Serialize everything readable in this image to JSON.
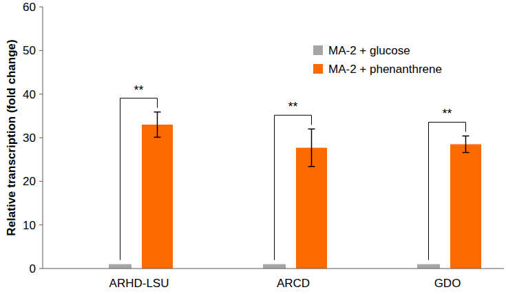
{
  "chart_data": {
    "type": "bar",
    "y_label": "Relative transcription (fold change)",
    "categories": [
      "ARHD-LSU",
      "ARCD",
      "GDO"
    ],
    "series": [
      {
        "name": "MA-2 + glucose",
        "color": "#a6a6a6",
        "values": [
          1,
          1,
          1
        ]
      },
      {
        "name": "MA-2 + phenanthrene",
        "color": "#ff6a00",
        "values": [
          33.0,
          27.7,
          28.5
        ],
        "errors": [
          2.9,
          4.3,
          1.9
        ]
      }
    ],
    "significance": [
      "**",
      "**",
      "**"
    ],
    "ylim": [
      0,
      60
    ],
    "yticks": [
      0,
      10,
      20,
      30,
      40,
      50,
      60
    ],
    "grid": false,
    "legend": "upper right"
  }
}
